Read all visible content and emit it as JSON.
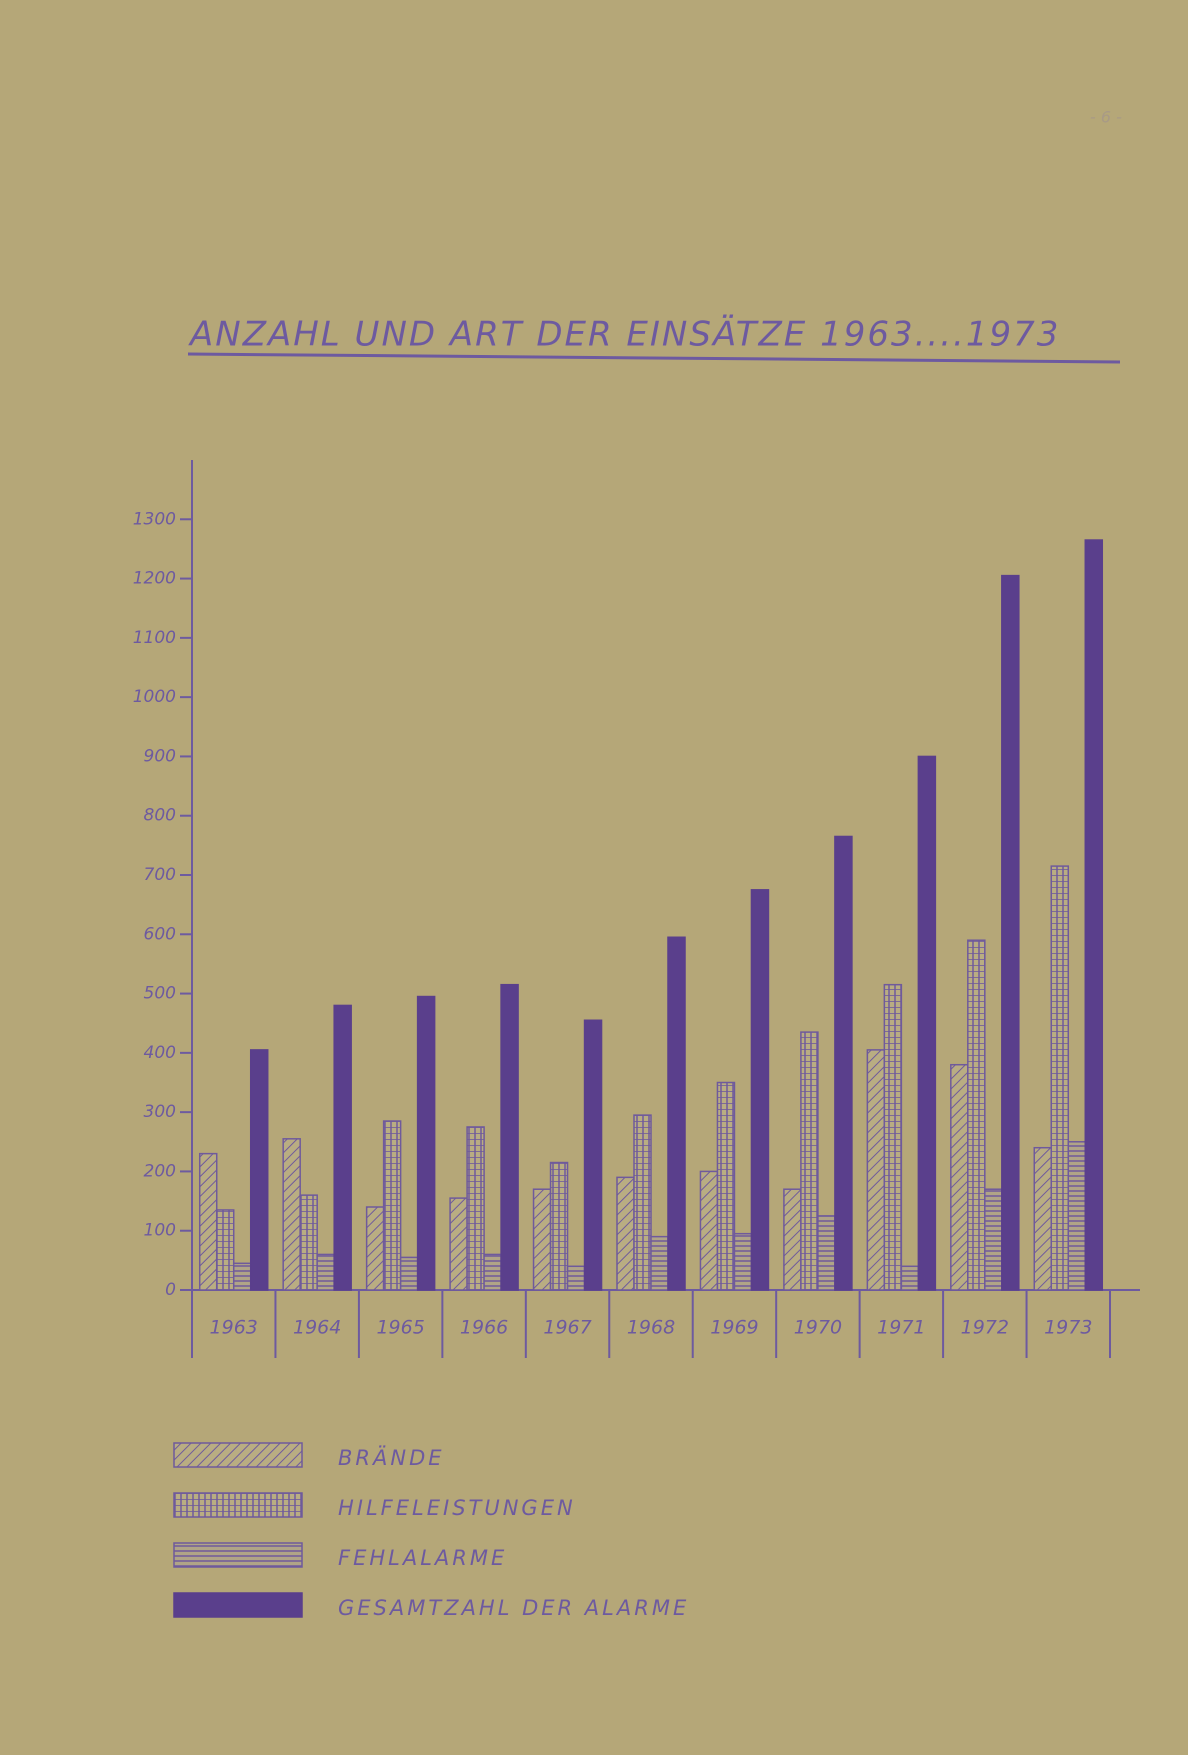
{
  "page_number": "- 6 -",
  "chart_data": {
    "type": "bar",
    "title": "ANZAHL UND ART DER EINSÄTZE 1963....1973",
    "categories": [
      "1963",
      "1964",
      "1965",
      "1966",
      "1967",
      "1968",
      "1969",
      "1970",
      "1971",
      "1972",
      "1973"
    ],
    "series": [
      {
        "name": "BRÄNDE",
        "color": "#6f5a9c",
        "hatch": "diagonal",
        "values": [
          230,
          255,
          140,
          155,
          170,
          190,
          200,
          170,
          405,
          380,
          240
        ]
      },
      {
        "name": "HILFELEISTUNGEN",
        "color": "#6f5a9c",
        "hatch": "vertical",
        "values": [
          135,
          160,
          285,
          275,
          215,
          295,
          350,
          435,
          515,
          590,
          715
        ]
      },
      {
        "name": "FEHLALARME",
        "color": "#6f5a9c",
        "hatch": "horizontal",
        "values": [
          45,
          60,
          55,
          60,
          40,
          90,
          95,
          125,
          40,
          170,
          250
        ]
      },
      {
        "name": "GESAMTZAHL DER ALARME",
        "color": "#5a3f8c",
        "hatch": "solid",
        "values": [
          405,
          480,
          495,
          515,
          455,
          595,
          675,
          765,
          900,
          1205,
          1265
        ]
      }
    ],
    "ylim": [
      0,
      1400
    ],
    "yticks": [
      0,
      100,
      200,
      300,
      400,
      500,
      600,
      700,
      800,
      900,
      1000,
      1100,
      1200,
      1300
    ]
  }
}
